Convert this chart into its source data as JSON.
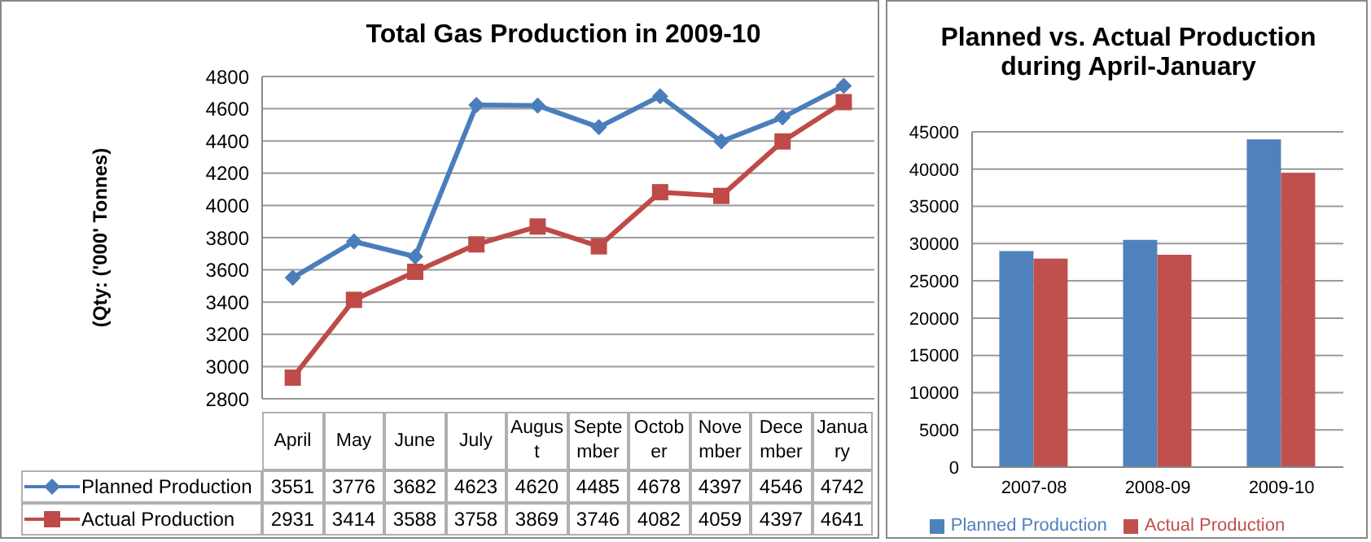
{
  "chart_data": [
    {
      "type": "line",
      "title": "Total Gas Production in 2009-10",
      "ylabel": "(Qty: ('000' Tonnes)",
      "categories": [
        "April",
        "May",
        "June",
        "July",
        "August",
        "September",
        "October",
        "November",
        "December",
        "January"
      ],
      "series": [
        {
          "name": "Planned Production",
          "color": "#4a7ebb",
          "marker": "diamond",
          "values": [
            3551,
            3776,
            3682,
            4623,
            4620,
            4485,
            4678,
            4397,
            4546,
            4742
          ]
        },
        {
          "name": "Actual Production",
          "color": "#be4b48",
          "marker": "square",
          "values": [
            2931,
            3414,
            3588,
            3758,
            3869,
            3746,
            4082,
            4059,
            4397,
            4641
          ]
        }
      ],
      "ylim": [
        2800,
        4800
      ],
      "yticks": [
        2800,
        3000,
        3200,
        3400,
        3600,
        3800,
        4000,
        4200,
        4400,
        4600,
        4800
      ],
      "grid": "y",
      "legend": "bottom",
      "data_labels": true
    },
    {
      "type": "bar",
      "title": "Planned vs. Actual Production during April-January",
      "categories": [
        "2007-08",
        "2008-09",
        "2009-10"
      ],
      "series": [
        {
          "name": "Planned Production",
          "color": "#4f81bd",
          "values": [
            29000,
            30500,
            44000
          ]
        },
        {
          "name": "Actual Production",
          "color": "#c0504d",
          "values": [
            28000,
            28500,
            39500
          ]
        }
      ],
      "ylim": [
        0,
        45000
      ],
      "yticks": [
        0,
        5000,
        10000,
        15000,
        20000,
        25000,
        30000,
        35000,
        40000,
        45000
      ],
      "grid": "y",
      "legend": "bottom"
    }
  ]
}
